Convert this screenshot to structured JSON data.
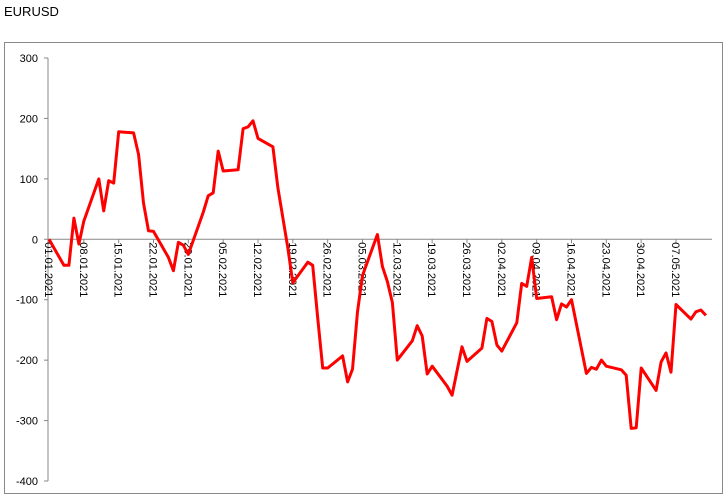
{
  "chart_data": {
    "type": "line",
    "title": "EURUSD",
    "color": "#ff0000",
    "x": [
      "01.01.2021",
      "04.01.2021",
      "05.01.2021",
      "06.01.2021",
      "07.01.2021",
      "08.01.2021",
      "11.01.2021",
      "12.01.2021",
      "13.01.2021",
      "14.01.2021",
      "15.01.2021",
      "18.01.2021",
      "19.01.2021",
      "20.01.2021",
      "21.01.2021",
      "22.01.2021",
      "25.01.2021",
      "26.01.2021",
      "27.01.2021",
      "28.01.2021",
      "29.01.2021",
      "01.02.2021",
      "02.02.2021",
      "03.02.2021",
      "04.02.2021",
      "05.02.2021",
      "08.02.2021",
      "09.02.2021",
      "10.02.2021",
      "11.02.2021",
      "12.02.2021",
      "15.02.2021",
      "16.02.2021",
      "17.02.2021",
      "18.02.2021",
      "19.02.2021",
      "22.02.2021",
      "23.02.2021",
      "24.02.2021",
      "25.02.2021",
      "26.02.2021",
      "01.03.2021",
      "02.03.2021",
      "03.03.2021",
      "04.03.2021",
      "05.03.2021",
      "08.03.2021",
      "09.03.2021",
      "10.03.2021",
      "11.03.2021",
      "12.03.2021",
      "15.03.2021",
      "16.03.2021",
      "17.03.2021",
      "18.03.2021",
      "19.03.2021",
      "22.03.2021",
      "23.03.2021",
      "24.03.2021",
      "25.03.2021",
      "26.03.2021",
      "29.03.2021",
      "30.03.2021",
      "31.03.2021",
      "01.04.2021",
      "02.04.2021",
      "05.04.2021",
      "06.04.2021",
      "07.04.2021",
      "08.04.2021",
      "09.04.2021",
      "12.04.2021",
      "13.04.2021",
      "14.04.2021",
      "15.04.2021",
      "16.04.2021",
      "19.04.2021",
      "20.04.2021",
      "21.04.2021",
      "22.04.2021",
      "23.04.2021",
      "26.04.2021",
      "27.04.2021",
      "28.04.2021",
      "29.04.2021",
      "30.04.2021",
      "03.05.2021",
      "04.05.2021",
      "05.05.2021",
      "06.05.2021",
      "07.05.2021",
      "10.05.2021",
      "11.05.2021",
      "12.05.2021",
      "13.05.2021"
    ],
    "values": [
      0,
      -43,
      -43,
      35,
      -8,
      30,
      100,
      47,
      97,
      93,
      178,
      176,
      140,
      60,
      14,
      13,
      -30,
      -52,
      -5,
      -10,
      -25,
      45,
      72,
      77,
      146,
      113,
      115,
      183,
      186,
      196,
      167,
      153,
      85,
      35,
      -15,
      -72,
      -38,
      -43,
      -130,
      -213,
      -213,
      -193,
      -236,
      -215,
      -120,
      -60,
      8,
      -45,
      -70,
      -105,
      -200,
      -168,
      -143,
      -160,
      -223,
      -210,
      -243,
      -258,
      -218,
      -178,
      -202,
      -180,
      -131,
      -136,
      -175,
      -185,
      -138,
      -73,
      -78,
      -30,
      -98,
      -95,
      -133,
      -107,
      -112,
      -100,
      -222,
      -212,
      -215,
      -200,
      -210,
      -216,
      -225,
      -313,
      -312,
      -213,
      -250,
      -203,
      -188,
      -220,
      -108,
      -132,
      -120,
      -117,
      -126
    ],
    "xticks": [
      "01.01.2021",
      "08.01.2021",
      "15.01.2021",
      "22.01.2021",
      "29.01.2021",
      "05.02.2021",
      "12.02.2021",
      "19.02.2021",
      "26.02.2021",
      "05.03.2021",
      "12.03.2021",
      "19.03.2021",
      "26.03.2021",
      "02.04.2021",
      "09.04.2021",
      "16.04.2021",
      "23.04.2021",
      "30.04.2021",
      "07.05.2021"
    ],
    "ylim": [
      -400,
      300
    ],
    "yticks": [
      -400,
      -300,
      -200,
      -100,
      0,
      100,
      200,
      300
    ]
  }
}
